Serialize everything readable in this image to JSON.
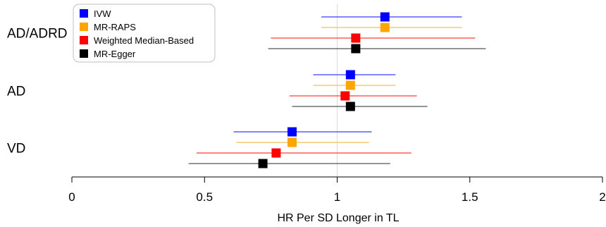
{
  "chart_data": {
    "type": "forest",
    "xlabel": "HR Per SD Longer in TL",
    "xlim": [
      0,
      2
    ],
    "xticks": [
      0,
      0.5,
      1,
      1.5,
      2
    ],
    "xtick_labels": [
      "0",
      "0.5",
      "1",
      "1.5",
      "2"
    ],
    "reference_line": 1,
    "legend_position": "top-left",
    "groups": [
      "AD/ADRD",
      "AD",
      "VD"
    ],
    "series": [
      {
        "name": "IVW",
        "color": "#0000ff",
        "ci_color": "#3b3bff",
        "estimates": [
          {
            "group": "AD/ADRD",
            "hr": 1.18,
            "lower": 0.94,
            "upper": 1.47
          },
          {
            "group": "AD",
            "hr": 1.05,
            "lower": 0.91,
            "upper": 1.22
          },
          {
            "group": "VD",
            "hr": 0.83,
            "lower": 0.61,
            "upper": 1.13
          }
        ]
      },
      {
        "name": "MR-RAPS",
        "color": "#ffa500",
        "ci_color": "#f2c14e",
        "estimates": [
          {
            "group": "AD/ADRD",
            "hr": 1.18,
            "lower": 0.94,
            "upper": 1.47
          },
          {
            "group": "AD",
            "hr": 1.05,
            "lower": 0.91,
            "upper": 1.22
          },
          {
            "group": "VD",
            "hr": 0.83,
            "lower": 0.62,
            "upper": 1.12
          }
        ]
      },
      {
        "name": "Weighted Median-Based",
        "color": "#ff0000",
        "ci_color": "#ff3b3b",
        "estimates": [
          {
            "group": "AD/ADRD",
            "hr": 1.07,
            "lower": 0.75,
            "upper": 1.52
          },
          {
            "group": "AD",
            "hr": 1.03,
            "lower": 0.82,
            "upper": 1.3
          },
          {
            "group": "VD",
            "hr": 0.77,
            "lower": 0.47,
            "upper": 1.28
          }
        ]
      },
      {
        "name": "MR-Egger",
        "color": "#000000",
        "ci_color": "#555555",
        "estimates": [
          {
            "group": "AD/ADRD",
            "hr": 1.07,
            "lower": 0.74,
            "upper": 1.56
          },
          {
            "group": "AD",
            "hr": 1.05,
            "lower": 0.83,
            "upper": 1.34
          },
          {
            "group": "VD",
            "hr": 0.72,
            "lower": 0.44,
            "upper": 1.2
          }
        ]
      }
    ]
  }
}
